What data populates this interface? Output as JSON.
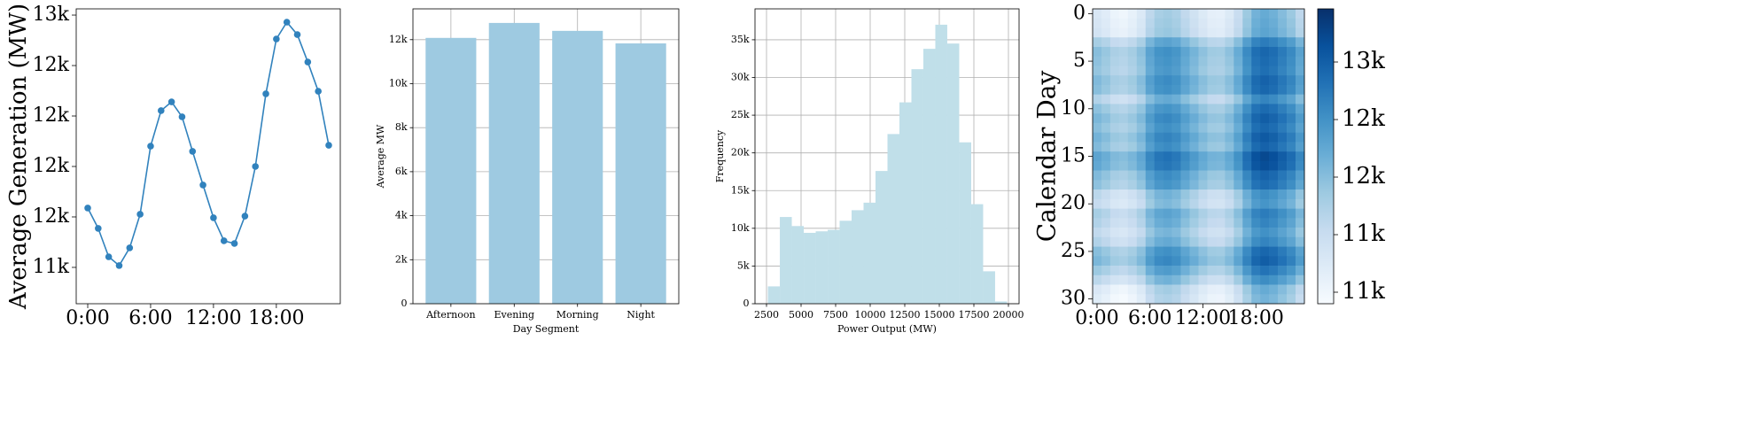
{
  "chart_data": [
    {
      "type": "line",
      "ylabel": "Average Generation (MW)",
      "color": "#3182bd",
      "x": [
        0,
        1,
        2,
        3,
        4,
        5,
        6,
        7,
        8,
        9,
        10,
        11,
        12,
        13,
        14,
        15,
        16,
        17,
        18,
        19,
        20,
        21,
        22,
        23
      ],
      "values": [
        11653,
        11532,
        11363,
        11311,
        11416,
        11616,
        12021,
        12232,
        12284,
        12195,
        11990,
        11790,
        11595,
        11458,
        11442,
        11605,
        11900,
        12332,
        12658,
        12758,
        12684,
        12521,
        12347,
        12026
      ],
      "xlim": [
        -1.1,
        24.1
      ],
      "xticks": [
        {
          "value": 0,
          "label": "0:00"
        },
        {
          "value": 6,
          "label": "6:00"
        },
        {
          "value": 12,
          "label": "12:00"
        },
        {
          "value": 18,
          "label": "18:00"
        }
      ],
      "ylim": [
        11084,
        12837
      ],
      "yticks": [
        {
          "value": 11300,
          "label": "11k"
        },
        {
          "value": 11600,
          "label": "12k"
        },
        {
          "value": 11900,
          "label": "12k"
        },
        {
          "value": 12200,
          "label": "12k"
        },
        {
          "value": 12500,
          "label": "12k"
        },
        {
          "value": 12800,
          "label": "13k"
        }
      ],
      "grid": false
    },
    {
      "type": "bar",
      "xlabel": "Day Segment",
      "ylabel": "Average MW",
      "color": "#9ecae1",
      "categories": [
        "Afternoon",
        "Evening",
        "Morning",
        "Night"
      ],
      "values": [
        12080,
        12760,
        12400,
        11830
      ],
      "ylim": [
        0,
        13400
      ],
      "yticks": [
        0,
        {
          "value": 2000,
          "label": "2k"
        },
        {
          "value": 4000,
          "label": "4k"
        },
        {
          "value": 6000,
          "label": "6k"
        },
        {
          "value": 8000,
          "label": "8k"
        },
        {
          "value": 10000,
          "label": "10k"
        },
        {
          "value": 12000,
          "label": "12k"
        }
      ],
      "grid": true
    },
    {
      "type": "histogram",
      "xlabel": "Power Output (MW)",
      "ylabel": "Frequency",
      "color": "#c0dfe9",
      "bins": [
        2600,
        3465,
        4330,
        5195,
        6060,
        6925,
        7790,
        8655,
        9520,
        10385,
        11250,
        12115,
        12980,
        13845,
        14710,
        15575,
        16440,
        17305,
        18170,
        19035,
        19900
      ],
      "values": [
        2300,
        11500,
        10300,
        9400,
        9600,
        9800,
        11000,
        12400,
        13400,
        17600,
        22500,
        26700,
        31100,
        33800,
        37000,
        34500,
        21400,
        13200,
        4300,
        300
      ],
      "xlim": [
        1667,
        20769
      ],
      "xticks": [
        2500,
        5000,
        7500,
        10000,
        12500,
        15000,
        17500,
        20000
      ],
      "ylim": [
        0,
        39100
      ],
      "yticks": [
        0,
        {
          "value": 5000,
          "label": "5k"
        },
        {
          "value": 10000,
          "label": "10k"
        },
        {
          "value": 15000,
          "label": "15k"
        },
        {
          "value": 20000,
          "label": "20k"
        },
        {
          "value": 25000,
          "label": "25k"
        },
        {
          "value": 30000,
          "label": "30k"
        },
        {
          "value": 35000,
          "label": "35k"
        }
      ],
      "grid": true
    },
    {
      "type": "heatmap",
      "ylabel": "Calendar Day",
      "colorscale": [
        "#f7fbff",
        "#deebf7",
        "#c6dbef",
        "#9ecae1",
        "#6baed6",
        "#4292c6",
        "#2171b5",
        "#08519c",
        "#08306b"
      ],
      "xlim": [
        -0.5,
        23.5
      ],
      "xticks": [
        {
          "value": 0,
          "label": "0:00"
        },
        {
          "value": 6,
          "label": "6:00"
        },
        {
          "value": 12,
          "label": "12:00"
        },
        {
          "value": 18,
          "label": "18:00"
        }
      ],
      "ylim": [
        -0.5,
        30.5
      ],
      "y_inverted": true,
      "yticks": [
        0,
        5,
        10,
        15,
        20,
        25,
        30
      ],
      "clim": [
        10480,
        13554
      ],
      "cticks": [
        {
          "value": 10600,
          "label": "11k"
        },
        {
          "value": 11200,
          "label": "11k"
        },
        {
          "value": 11800,
          "label": "12k"
        },
        {
          "value": 12400,
          "label": "12k"
        },
        {
          "value": 13000,
          "label": "13k"
        }
      ],
      "values": [
        [
          10950,
          10830,
          10660,
          10610,
          10720,
          10920,
          11320,
          11530,
          11580,
          11500,
          11290,
          11090,
          10900,
          10760,
          10740,
          10900,
          11200,
          11630,
          11960,
          12060,
          11980,
          11820,
          11650,
          11330
        ],
        [
          11000,
          10880,
          10710,
          10660,
          10770,
          10970,
          11370,
          11580,
          11630,
          11550,
          11340,
          11140,
          10950,
          10810,
          10790,
          10950,
          11250,
          11680,
          12010,
          12110,
          12030,
          11870,
          11700,
          11380
        ],
        [
          11050,
          10930,
          10760,
          10710,
          10820,
          11020,
          11420,
          11630,
          11680,
          11600,
          11390,
          11190,
          11000,
          10860,
          10840,
          11000,
          11300,
          11730,
          12060,
          12160,
          12080,
          11920,
          11750,
          11430
        ],
        [
          11550,
          11430,
          11260,
          11210,
          11320,
          11520,
          11920,
          12130,
          12180,
          12100,
          11890,
          11690,
          11500,
          11360,
          11340,
          11500,
          11800,
          12230,
          12560,
          12660,
          12580,
          12420,
          12250,
          11930
        ],
        [
          11800,
          11680,
          11510,
          11460,
          11570,
          11770,
          12170,
          12380,
          12430,
          12350,
          12140,
          11940,
          11750,
          11610,
          11590,
          11750,
          12050,
          12480,
          12810,
          12910,
          12830,
          12670,
          12500,
          12180
        ],
        [
          11750,
          11630,
          11460,
          11410,
          11520,
          11720,
          12120,
          12330,
          12380,
          12300,
          12090,
          11890,
          11700,
          11560,
          11540,
          11700,
          12000,
          12430,
          12760,
          12860,
          12780,
          12620,
          12450,
          12130
        ],
        [
          11700,
          11580,
          11410,
          11360,
          11470,
          11670,
          12070,
          12280,
          12330,
          12250,
          12040,
          11840,
          11650,
          11510,
          11490,
          11650,
          11950,
          12380,
          12710,
          12810,
          12730,
          12570,
          12400,
          12080
        ],
        [
          11850,
          11730,
          11560,
          11510,
          11620,
          11820,
          12220,
          12430,
          12480,
          12400,
          12190,
          11990,
          11800,
          11660,
          11640,
          11800,
          12100,
          12530,
          12860,
          12960,
          12880,
          12720,
          12550,
          12230
        ],
        [
          11800,
          11680,
          11510,
          11460,
          11570,
          11770,
          12170,
          12380,
          12430,
          12350,
          12140,
          11940,
          11750,
          11610,
          11590,
          11750,
          12050,
          12480,
          12810,
          12910,
          12830,
          12670,
          12500,
          12180
        ],
        [
          11450,
          11330,
          11160,
          11110,
          11220,
          11420,
          11820,
          12030,
          12080,
          12000,
          11790,
          11590,
          11400,
          11260,
          11240,
          11400,
          11700,
          12130,
          12460,
          12560,
          12480,
          12320,
          12150,
          11830
        ],
        [
          11750,
          11630,
          11460,
          11410,
          11520,
          11720,
          12120,
          12330,
          12380,
          12300,
          12090,
          11890,
          11700,
          11560,
          11540,
          11700,
          12000,
          12430,
          12760,
          12860,
          12780,
          12620,
          12450,
          12130
        ],
        [
          11900,
          11780,
          11610,
          11560,
          11670,
          11870,
          12270,
          12480,
          12530,
          12450,
          12240,
          12040,
          11850,
          11710,
          11690,
          11850,
          12150,
          12580,
          12910,
          13010,
          12930,
          12770,
          12600,
          12280
        ],
        [
          11800,
          11680,
          11510,
          11460,
          11570,
          11770,
          12170,
          12380,
          12430,
          12350,
          12140,
          11940,
          11750,
          11610,
          11590,
          11750,
          12050,
          12480,
          12810,
          12910,
          12830,
          12670,
          12500,
          12180
        ],
        [
          11950,
          11830,
          11660,
          11610,
          11720,
          11920,
          12320,
          12530,
          12580,
          12500,
          12290,
          12090,
          11900,
          11760,
          11740,
          11900,
          12200,
          12630,
          12960,
          13060,
          12980,
          12820,
          12650,
          12330
        ],
        [
          11850,
          11730,
          11560,
          11510,
          11620,
          11820,
          12220,
          12430,
          12480,
          12400,
          12190,
          11990,
          11800,
          11660,
          11640,
          11800,
          12100,
          12530,
          12860,
          12960,
          12880,
          12720,
          12550,
          12230
        ],
        [
          12150,
          12030,
          11860,
          11810,
          11920,
          12120,
          12520,
          12730,
          12780,
          12700,
          12490,
          12290,
          12100,
          11960,
          11940,
          12100,
          12400,
          12830,
          13160,
          13260,
          13180,
          13020,
          12850,
          12530
        ],
        [
          12100,
          11980,
          11810,
          11760,
          11870,
          12070,
          12470,
          12680,
          12730,
          12650,
          12440,
          12240,
          12050,
          11910,
          11890,
          12050,
          12350,
          12780,
          13110,
          13210,
          13130,
          12970,
          12800,
          12480
        ],
        [
          11850,
          11730,
          11560,
          11510,
          11620,
          11820,
          12220,
          12430,
          12480,
          12400,
          12190,
          11990,
          11800,
          11660,
          11640,
          11800,
          12100,
          12530,
          12860,
          12960,
          12880,
          12720,
          12550,
          12230
        ],
        [
          11750,
          11630,
          11460,
          11410,
          11520,
          11720,
          12120,
          12330,
          12380,
          12300,
          12090,
          11890,
          11700,
          11560,
          11540,
          11700,
          12000,
          12430,
          12760,
          12860,
          12780,
          12620,
          12450,
          12130
        ],
        [
          11350,
          11230,
          11060,
          11010,
          11120,
          11320,
          11720,
          11930,
          11980,
          11900,
          11690,
          11490,
          11300,
          11160,
          11140,
          11300,
          11600,
          12030,
          12360,
          12460,
          12380,
          12220,
          12050,
          11730
        ],
        [
          11250,
          11130,
          10960,
          10910,
          11020,
          11220,
          11620,
          11830,
          11880,
          11800,
          11590,
          11390,
          11200,
          11060,
          11040,
          11200,
          11500,
          11930,
          12260,
          12360,
          12280,
          12120,
          11950,
          11630
        ],
        [
          11550,
          11430,
          11260,
          11210,
          11320,
          11520,
          11920,
          12130,
          12180,
          12100,
          11890,
          11690,
          11500,
          11360,
          11340,
          11500,
          11800,
          12230,
          12560,
          12660,
          12580,
          12420,
          12250,
          11930
        ],
        [
          11450,
          11330,
          11160,
          11110,
          11220,
          11420,
          11820,
          12030,
          12080,
          12000,
          11790,
          11590,
          11400,
          11260,
          11240,
          11400,
          11700,
          12130,
          12460,
          12560,
          12480,
          12320,
          12150,
          11830
        ],
        [
          11300,
          11180,
          11010,
          10960,
          11070,
          11270,
          11670,
          11880,
          11930,
          11850,
          11640,
          11440,
          11250,
          11110,
          11090,
          11250,
          11550,
          11980,
          12310,
          12410,
          12330,
          12170,
          12000,
          11680
        ],
        [
          11450,
          11330,
          11160,
          11110,
          11220,
          11420,
          11820,
          12030,
          12080,
          12000,
          11790,
          11590,
          11400,
          11260,
          11240,
          11400,
          11700,
          12130,
          12460,
          12560,
          12480,
          12320,
          12150,
          11830
        ],
        [
          11800,
          11680,
          11510,
          11460,
          11570,
          11770,
          12170,
          12380,
          12430,
          12350,
          12140,
          11940,
          11750,
          11610,
          11590,
          11750,
          12050,
          12480,
          12810,
          12910,
          12830,
          12670,
          12500,
          12180
        ],
        [
          11900,
          11780,
          11610,
          11560,
          11670,
          11870,
          12270,
          12480,
          12530,
          12450,
          12240,
          12040,
          11850,
          11710,
          11690,
          11850,
          12150,
          12580,
          12910,
          13010,
          12930,
          12770,
          12600,
          12280
        ],
        [
          11650,
          11530,
          11360,
          11310,
          11420,
          11620,
          12020,
          12230,
          12280,
          12200,
          11990,
          11790,
          11600,
          11460,
          11440,
          11600,
          11900,
          12330,
          12660,
          12760,
          12680,
          12520,
          12350,
          12030
        ],
        [
          11350,
          11230,
          11060,
          11010,
          11120,
          11320,
          11720,
          11930,
          11980,
          11900,
          11690,
          11490,
          11300,
          11160,
          11140,
          11300,
          11600,
          12030,
          12360,
          12460,
          12380,
          12220,
          12050,
          11730
        ],
        [
          10950,
          10830,
          10660,
          10610,
          10720,
          10920,
          11320,
          11530,
          11580,
          11500,
          11290,
          11090,
          10900,
          10760,
          10740,
          10900,
          11200,
          11630,
          11960,
          12060,
          11980,
          11820,
          11650,
          11330
        ],
        [
          10850,
          10730,
          10560,
          10510,
          10620,
          10820,
          11220,
          11430,
          11480,
          11400,
          11190,
          10990,
          10800,
          10660,
          10640,
          10800,
          11100,
          11530,
          11860,
          11960,
          11880,
          11720,
          11550,
          11230
        ]
      ]
    }
  ]
}
